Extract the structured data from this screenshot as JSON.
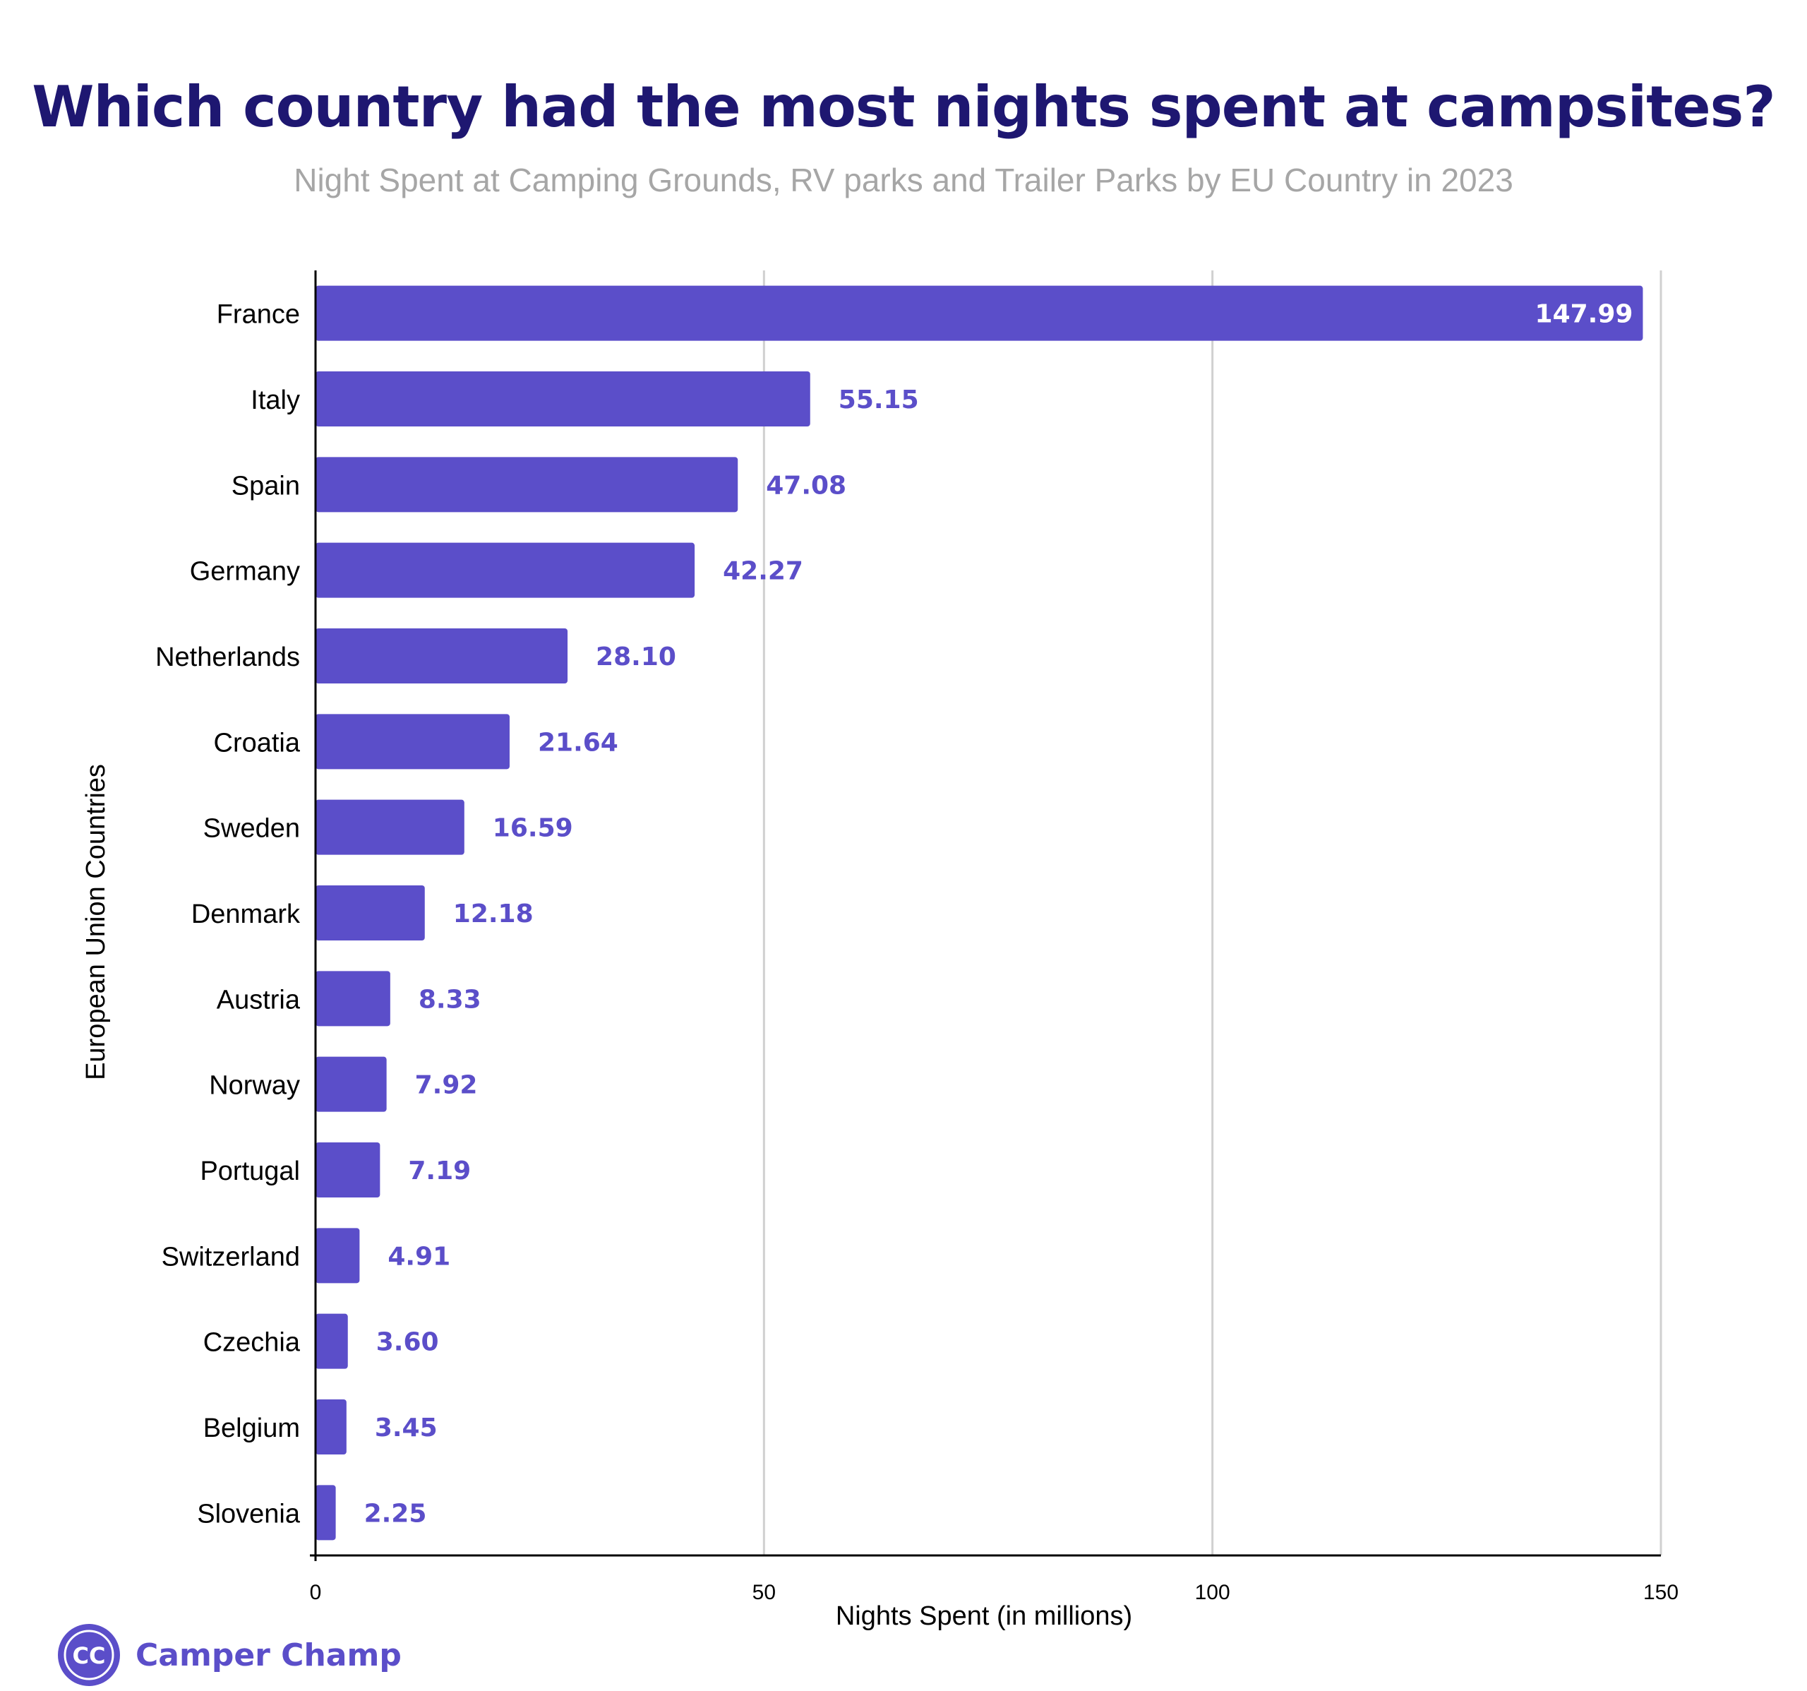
{
  "title": "Which country had the most nights spent at campsites?",
  "subtitle": "Night Spent at Camping Grounds, RV parks and Trailer Parks by EU Country in 2023",
  "brand": {
    "name": "Camper Champ",
    "logo_text": "CC"
  },
  "colors": {
    "bar": "#5b4ec9",
    "value_label": "#5b4ec9",
    "value_label_inside": "#ffffff",
    "title": "#1e1771",
    "subtitle": "#a6a6a6",
    "gridline": "#d0d0d0",
    "axis": "#000000"
  },
  "chart_data": {
    "type": "bar",
    "orientation": "horizontal",
    "title": "Which country had the most nights spent at campsites?",
    "subtitle": "Night Spent at Camping Grounds, RV parks and Trailer Parks by EU Country in 2023",
    "xlabel": "Nights Spent (in millions)",
    "ylabel": "European Union Countries",
    "xlim": [
      0,
      150
    ],
    "xticks": [
      0,
      50,
      100,
      150
    ],
    "grid": true,
    "legend": "none",
    "categories": [
      "France",
      "Italy",
      "Spain",
      "Germany",
      "Netherlands",
      "Croatia",
      "Sweden",
      "Denmark",
      "Austria",
      "Norway",
      "Portugal",
      "Switzerland",
      "Czechia",
      "Belgium",
      "Slovenia"
    ],
    "values": [
      147.99,
      55.15,
      47.08,
      42.27,
      28.1,
      21.64,
      16.59,
      12.18,
      8.33,
      7.92,
      7.19,
      4.91,
      3.6,
      3.45,
      2.25
    ],
    "value_labels": [
      "147.99",
      "55.15",
      "47.08",
      "42.27",
      "28.10",
      "21.64",
      "16.59",
      "12.18",
      "8.33",
      "7.92",
      "7.19",
      "4.91",
      "3.60",
      "3.45",
      "2.25"
    ]
  }
}
